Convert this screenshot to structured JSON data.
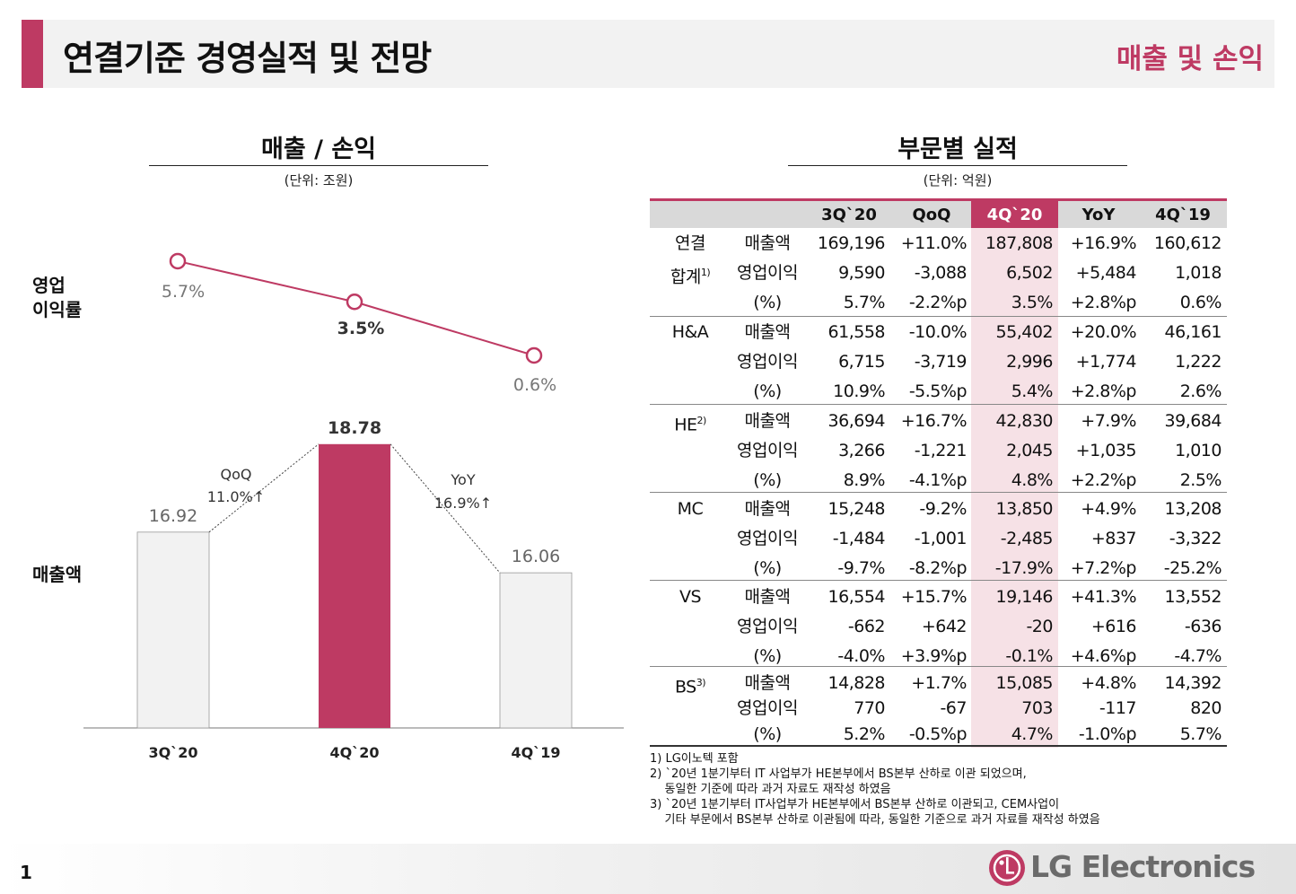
{
  "header": {
    "title": "연결기준 경영실적 및 전망",
    "section": "매출 및 손익"
  },
  "left": {
    "title": "매출 / 손익",
    "unit": "(단위: 조원)",
    "label_margin": "영업\n이익률",
    "label_revenue": "매출액"
  },
  "chart_data": {
    "type": "bar",
    "categories": [
      "3Q`20",
      "4Q`20",
      "4Q`19"
    ],
    "series": [
      {
        "name": "매출액",
        "values": [
          16.92,
          18.78,
          16.06
        ],
        "value_labels": [
          "16.92",
          "18.78",
          "16.06"
        ]
      },
      {
        "name": "영업이익률",
        "values": [
          5.7,
          3.5,
          0.6
        ],
        "value_labels": [
          "5.7%",
          "3.5%",
          "0.6%"
        ]
      }
    ],
    "highlight_category": "4Q`20",
    "annotations": [
      {
        "label": "QoQ",
        "value": "11.0%↑"
      },
      {
        "label": "YoY",
        "value": "16.9%↑"
      }
    ],
    "colors": {
      "highlight": "#be3a63",
      "bar": "#f2f2f2",
      "line": "#be3a63"
    }
  },
  "right": {
    "title": "부문별 실적",
    "unit": "(단위: 억원)",
    "columns": [
      "3Q`20",
      "QoQ",
      "4Q`20",
      "YoY",
      "4Q`19"
    ],
    "groups": [
      {
        "segment": [
          "연결",
          "합계"
        ],
        "sup": "1)",
        "rows": [
          {
            "metric": "매출액",
            "values": [
              "169,196",
              "+11.0%",
              "187,808",
              "+16.9%",
              "160,612"
            ]
          },
          {
            "metric": "영업이익",
            "values": [
              "9,590",
              "-3,088",
              "6,502",
              "+5,484",
              "1,018"
            ]
          },
          {
            "metric": "(%)",
            "values": [
              "5.7%",
              "-2.2%p",
              "3.5%",
              "+2.8%p",
              "0.6%"
            ]
          }
        ]
      },
      {
        "segment": [
          "H&A"
        ],
        "sup": "",
        "rows": [
          {
            "metric": "매출액",
            "values": [
              "61,558",
              "-10.0%",
              "55,402",
              "+20.0%",
              "46,161"
            ]
          },
          {
            "metric": "영업이익",
            "values": [
              "6,715",
              "-3,719",
              "2,996",
              "+1,774",
              "1,222"
            ]
          },
          {
            "metric": "(%)",
            "values": [
              "10.9%",
              "-5.5%p",
              "5.4%",
              "+2.8%p",
              "2.6%"
            ]
          }
        ]
      },
      {
        "segment": [
          "HE"
        ],
        "sup": "2)",
        "rows": [
          {
            "metric": "매출액",
            "values": [
              "36,694",
              "+16.7%",
              "42,830",
              "+7.9%",
              "39,684"
            ]
          },
          {
            "metric": "영업이익",
            "values": [
              "3,266",
              "-1,221",
              "2,045",
              "+1,035",
              "1,010"
            ]
          },
          {
            "metric": "(%)",
            "values": [
              "8.9%",
              "-4.1%p",
              "4.8%",
              "+2.2%p",
              "2.5%"
            ]
          }
        ]
      },
      {
        "segment": [
          "MC"
        ],
        "sup": "",
        "rows": [
          {
            "metric": "매출액",
            "values": [
              "15,248",
              "-9.2%",
              "13,850",
              "+4.9%",
              "13,208"
            ]
          },
          {
            "metric": "영업이익",
            "values": [
              "-1,484",
              "-1,001",
              "-2,485",
              "+837",
              "-3,322"
            ]
          },
          {
            "metric": "(%)",
            "values": [
              "-9.7%",
              "-8.2%p",
              "-17.9%",
              "+7.2%p",
              "-25.2%"
            ]
          }
        ]
      },
      {
        "segment": [
          "VS"
        ],
        "sup": "",
        "rows": [
          {
            "metric": "매출액",
            "values": [
              "16,554",
              "+15.7%",
              "19,146",
              "+41.3%",
              "13,552"
            ]
          },
          {
            "metric": "영업이익",
            "values": [
              "-662",
              "+642",
              "-20",
              "+616",
              "-636"
            ]
          },
          {
            "metric": "(%)",
            "values": [
              "-4.0%",
              "+3.9%p",
              "-0.1%",
              "+4.6%p",
              "-4.7%"
            ]
          }
        ]
      },
      {
        "segment": [
          "BS"
        ],
        "sup": "3)",
        "rows": [
          {
            "metric": "매출액",
            "values": [
              "14,828",
              "+1.7%",
              "15,085",
              "+4.8%",
              "14,392"
            ]
          },
          {
            "metric": "영업이익",
            "values": [
              "770",
              "-67",
              "703",
              "-117",
              "820"
            ]
          },
          {
            "metric": "(%)",
            "values": [
              "5.2%",
              "-0.5%p",
              "4.7%",
              "-1.0%p",
              "5.7%"
            ]
          }
        ]
      }
    ],
    "footnotes": [
      "1) LG이노텍 포함",
      "2) `20년 1분기부터 IT 사업부가 HE본부에서 BS본부 산하로 이관 되었으며,",
      "    동일한 기준에 따라 과거 자료도 재작성 하였음",
      "3) `20년 1분기부터 IT사업부가 HE본부에서 BS본부 산하로 이관되고, CEM사업이",
      "    기타 부문에서 BS본부 산하로 이관됨에 따라, 동일한 기준으로 과거 자료를 재작성 하였음"
    ]
  },
  "footer": {
    "page": "1",
    "brand": "LG Electronics",
    "logo_letters": "LG"
  }
}
